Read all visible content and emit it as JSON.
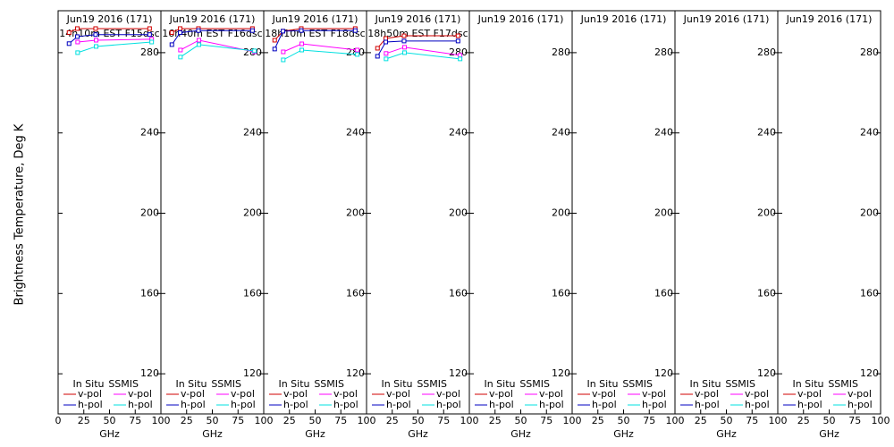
{
  "chart_data": [
    {
      "type": "line",
      "title": "Jun19 2016 (171)",
      "subtitle": "14h10m EST F15dsc",
      "xlabel": "GHz",
      "ylabel": "Brightness Temperature, Deg K",
      "xlim": [
        0,
        100
      ],
      "xticks": [
        0,
        25,
        50,
        75,
        100
      ],
      "ylim": [
        100,
        300
      ],
      "yticks": [
        120,
        160,
        200,
        240,
        280
      ],
      "groups": [
        {
          "name": "In Situ",
          "series": [
            {
              "name": "v-pol",
              "color": "#d00000",
              "x": [
                10.65,
                18.7,
                36.5,
                89
              ],
              "values": [
                290,
                292,
                292,
                292
              ]
            },
            {
              "name": "h-pol",
              "color": "#0000c0",
              "x": [
                10.65,
                18.7,
                36.5,
                89
              ],
              "values": [
                284.5,
                288,
                289,
                289
              ]
            }
          ]
        },
        {
          "name": "SSMIS",
          "series": [
            {
              "name": "v-pol",
              "color": "#ff00ff",
              "x": [
                19,
                37,
                91
              ],
              "values": [
                285.3,
                286.2,
                286.7
              ]
            },
            {
              "name": "h-pol",
              "color": "#00e0e0",
              "x": [
                19,
                37,
                91
              ],
              "values": [
                280,
                283.1,
                285.3
              ]
            }
          ]
        }
      ]
    },
    {
      "type": "line",
      "title": "Jun19 2016 (171)",
      "subtitle": "16h40m EST F16dsc",
      "xlabel": "GHz",
      "xlim": [
        0,
        100
      ],
      "xticks": [
        0,
        25,
        50,
        75,
        100
      ],
      "ylim": [
        100,
        300
      ],
      "yticks": [
        120,
        160,
        200,
        240,
        280
      ],
      "groups": [
        {
          "name": "In Situ",
          "series": [
            {
              "name": "v-pol",
              "color": "#d00000",
              "x": [
                10.65,
                18.7,
                36.5,
                89
              ],
              "values": [
                290,
                292,
                292,
                292
              ]
            },
            {
              "name": "h-pol",
              "color": "#0000c0",
              "x": [
                10.65,
                18.7,
                36.5,
                89
              ],
              "values": [
                284,
                290,
                291,
                291
              ]
            }
          ]
        },
        {
          "name": "SSMIS",
          "series": [
            {
              "name": "v-pol",
              "color": "#ff00ff",
              "x": [
                19,
                37,
                91
              ],
              "values": [
                281.3,
                286.2,
                280.4
              ]
            },
            {
              "name": "h-pol",
              "color": "#00e0e0",
              "x": [
                19,
                37,
                91
              ],
              "values": [
                277.8,
                284,
                280.9
              ]
            }
          ]
        }
      ]
    },
    {
      "type": "line",
      "title": "Jun19 2016 (171)",
      "subtitle": "18h10m EST F18dsc",
      "xlabel": "GHz",
      "xlim": [
        0,
        100
      ],
      "xticks": [
        0,
        25,
        50,
        75,
        100
      ],
      "ylim": [
        100,
        300
      ],
      "yticks": [
        120,
        160,
        200,
        240,
        280
      ],
      "groups": [
        {
          "name": "In Situ",
          "series": [
            {
              "name": "v-pol",
              "color": "#d00000",
              "x": [
                10.65,
                18.7,
                36.5,
                89
              ],
              "values": [
                286.2,
                290.7,
                292,
                292
              ]
            },
            {
              "name": "h-pol",
              "color": "#0000c0",
              "x": [
                10.65,
                18.7,
                36.5,
                89
              ],
              "values": [
                281.8,
                290.7,
                291,
                291
              ]
            }
          ]
        },
        {
          "name": "SSMIS",
          "series": [
            {
              "name": "v-pol",
              "color": "#ff00ff",
              "x": [
                19,
                37,
                91
              ],
              "values": [
                280.4,
                284.4,
                281.3
              ]
            },
            {
              "name": "h-pol",
              "color": "#00e0e0",
              "x": [
                19,
                37,
                91
              ],
              "values": [
                276.4,
                281.3,
                279.1
              ]
            }
          ]
        }
      ]
    },
    {
      "type": "line",
      "title": "Jun19 2016 (171)",
      "subtitle": "18h50m EST F17dsc",
      "xlabel": "GHz",
      "xlim": [
        0,
        100
      ],
      "xticks": [
        0,
        25,
        50,
        75,
        100
      ],
      "ylim": [
        100,
        300
      ],
      "yticks": [
        120,
        160,
        200,
        240,
        280
      ],
      "groups": [
        {
          "name": "In Situ",
          "series": [
            {
              "name": "v-pol",
              "color": "#d00000",
              "x": [
                10.65,
                18.7,
                36.5,
                89
              ],
              "values": [
                282.2,
                287.1,
                288.4,
                288.4
              ]
            },
            {
              "name": "h-pol",
              "color": "#0000c0",
              "x": [
                10.65,
                18.7,
                36.5,
                89
              ],
              "values": [
                278.2,
                285.3,
                285.8,
                285.8
              ]
            }
          ]
        },
        {
          "name": "SSMIS",
          "series": [
            {
              "name": "v-pol",
              "color": "#ff00ff",
              "x": [
                19,
                37,
                91
              ],
              "values": [
                279.6,
                282.7,
                278.7
              ]
            },
            {
              "name": "h-pol",
              "color": "#00e0e0",
              "x": [
                19,
                37,
                91
              ],
              "values": [
                276.9,
                280,
                276.9
              ]
            }
          ]
        }
      ]
    },
    {
      "type": "line",
      "title": "Jun19 2016 (171)",
      "xlabel": "GHz",
      "xlim": [
        0,
        100
      ],
      "xticks": [
        0,
        25,
        50,
        75,
        100
      ],
      "ylim": [
        100,
        300
      ],
      "yticks": [
        120,
        160,
        200,
        240,
        280
      ],
      "groups": [
        {
          "name": "In Situ",
          "series": [
            {
              "name": "v-pol",
              "color": "#d00000",
              "x": [],
              "values": []
            },
            {
              "name": "h-pol",
              "color": "#0000c0",
              "x": [],
              "values": []
            }
          ]
        },
        {
          "name": "SSMIS",
          "series": [
            {
              "name": "v-pol",
              "color": "#ff00ff",
              "x": [],
              "values": []
            },
            {
              "name": "h-pol",
              "color": "#00e0e0",
              "x": [],
              "values": []
            }
          ]
        }
      ]
    },
    {
      "type": "line",
      "title": "Jun19 2016 (171)",
      "xlabel": "GHz",
      "xlim": [
        0,
        100
      ],
      "xticks": [
        0,
        25,
        50,
        75,
        100
      ],
      "ylim": [
        100,
        300
      ],
      "yticks": [
        120,
        160,
        200,
        240,
        280
      ],
      "groups": [
        {
          "name": "In Situ",
          "series": [
            {
              "name": "v-pol",
              "color": "#d00000",
              "x": [],
              "values": []
            },
            {
              "name": "h-pol",
              "color": "#0000c0",
              "x": [],
              "values": []
            }
          ]
        },
        {
          "name": "SSMIS",
          "series": [
            {
              "name": "v-pol",
              "color": "#ff00ff",
              "x": [],
              "values": []
            },
            {
              "name": "h-pol",
              "color": "#00e0e0",
              "x": [],
              "values": []
            }
          ]
        }
      ]
    },
    {
      "type": "line",
      "title": "Jun19 2016 (171)",
      "xlabel": "GHz",
      "xlim": [
        0,
        100
      ],
      "xticks": [
        0,
        25,
        50,
        75,
        100
      ],
      "ylim": [
        100,
        300
      ],
      "yticks": [
        120,
        160,
        200,
        240,
        280
      ],
      "groups": [
        {
          "name": "In Situ",
          "series": [
            {
              "name": "v-pol",
              "color": "#d00000",
              "x": [],
              "values": []
            },
            {
              "name": "h-pol",
              "color": "#0000c0",
              "x": [],
              "values": []
            }
          ]
        },
        {
          "name": "SSMIS",
          "series": [
            {
              "name": "v-pol",
              "color": "#ff00ff",
              "x": [],
              "values": []
            },
            {
              "name": "h-pol",
              "color": "#00e0e0",
              "x": [],
              "values": []
            }
          ]
        }
      ]
    },
    {
      "type": "line",
      "title": "Jun19 2016 (171)",
      "xlabel": "GHz",
      "xlim": [
        0,
        100
      ],
      "xticks": [
        0,
        25,
        50,
        75,
        100
      ],
      "ylim": [
        100,
        300
      ],
      "yticks": [
        120,
        160,
        200,
        240,
        280
      ],
      "groups": [
        {
          "name": "In Situ",
          "series": [
            {
              "name": "v-pol",
              "color": "#d00000",
              "x": [],
              "values": []
            },
            {
              "name": "h-pol",
              "color": "#0000c0",
              "x": [],
              "values": []
            }
          ]
        },
        {
          "name": "SSMIS",
          "series": [
            {
              "name": "v-pol",
              "color": "#ff00ff",
              "x": [],
              "values": []
            },
            {
              "name": "h-pol",
              "color": "#00e0e0",
              "x": [],
              "values": []
            }
          ]
        }
      ]
    }
  ]
}
